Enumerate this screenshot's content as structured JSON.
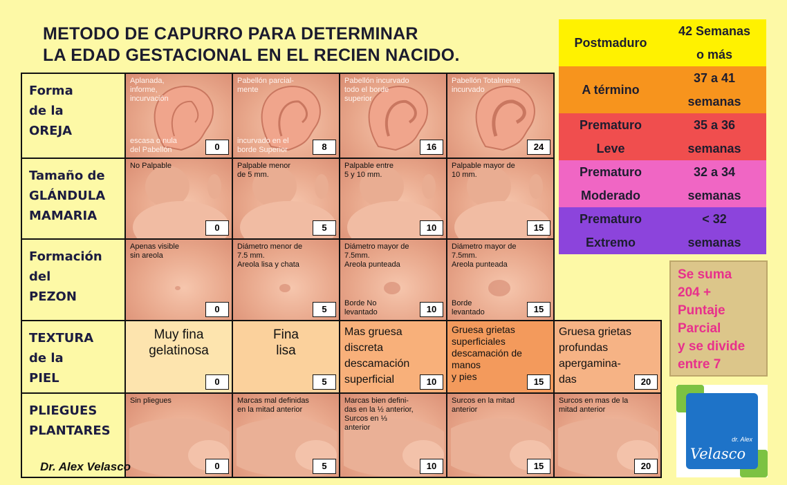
{
  "title": [
    "METODO DE CAPURRO PARA DETERMINAR",
    "LA EDAD GESTACIONAL EN EL RECIEN NACIDO."
  ],
  "rows": [
    {
      "label": [
        "Forma",
        "de la",
        "OREJA"
      ],
      "cells": [
        {
          "top": [
            "Aplanada,",
            "informe,",
            "incurvación"
          ],
          "bottom": [
            "escasa o nula",
            "del Pabellón"
          ],
          "score": 0
        },
        {
          "top": [
            "Pabellón parcial-",
            "mente"
          ],
          "bottom": [
            "incurvado en el",
            "borde Superior"
          ],
          "score": 8
        },
        {
          "top": [
            "Pabellón incurvado",
            "todo el borde",
            "superior"
          ],
          "score": 16
        },
        {
          "top": [
            "Pabellón Totalmente",
            "incurvado"
          ],
          "score": 24
        }
      ]
    },
    {
      "label": [
        "Tamaño de",
        "GLÁNDULA",
        "MAMARIA"
      ],
      "cells": [
        {
          "top": [
            "No Palpable"
          ],
          "score": 0
        },
        {
          "top": [
            "Palpable menor",
            "de 5 mm."
          ],
          "score": 5
        },
        {
          "top": [
            "Palpable entre",
            "5 y 10 mm."
          ],
          "score": 10
        },
        {
          "top": [
            "Palpable mayor de",
            "10 mm."
          ],
          "score": 15
        }
      ]
    },
    {
      "label": [
        "Formación",
        "del",
        "PEZON"
      ],
      "cells": [
        {
          "top": [
            "Apenas visible",
            "sin areola"
          ],
          "score": 0
        },
        {
          "top": [
            "Diámetro menor de",
            "7.5 mm.",
            "Areola lisa y chata"
          ],
          "score": 5
        },
        {
          "top": [
            "Diámetro mayor de",
            "7.5mm.",
            "Areola punteada"
          ],
          "bottom": [
            "Borde No",
            "levantado"
          ],
          "score": 10
        },
        {
          "top": [
            "Diámetro mayor de",
            "7.5mm.",
            "Areola punteada"
          ],
          "bottom": [
            "Borde",
            "levantado"
          ],
          "score": 15
        }
      ]
    },
    {
      "label": [
        "TEXTURA",
        "de la",
        "PIEL"
      ],
      "cells": [
        {
          "top": [
            "Muy fina",
            "gelatinosa"
          ],
          "score": 0
        },
        {
          "top": [
            "Fina",
            "lisa"
          ],
          "score": 5
        },
        {
          "top": [
            "Mas gruesa",
            "discreta",
            "descamación",
            "superficial"
          ],
          "score": 10
        },
        {
          "top": [
            "Gruesa grietas",
            "superficiales",
            "descamación de",
            "manos",
            "y pies"
          ],
          "score": 15
        },
        {
          "top": [
            "Gruesa grietas",
            "profundas",
            "apergamina-",
            "das"
          ],
          "score": 20
        }
      ]
    },
    {
      "label": [
        "PLIEGUES",
        "PLANTARES"
      ],
      "cells": [
        {
          "top": [
            "Sin pliegues"
          ],
          "score": 0
        },
        {
          "top": [
            "Marcas mal definidas",
            "en la mitad anterior"
          ],
          "score": 5
        },
        {
          "top": [
            "Marcas bien defini-",
            "das en la ½ anterior,",
            "Surcos en ⅓",
            "anterior"
          ],
          "score": 10
        },
        {
          "top": [
            "Surcos en la mitad",
            "anterior"
          ],
          "score": 15
        },
        {
          "top": [
            "Surcos en mas de la",
            "mitad anterior"
          ],
          "score": 20
        }
      ]
    }
  ],
  "classification": [
    {
      "name": [
        "Postmaduro"
      ],
      "range": [
        "42 Semanas",
        "o más"
      ]
    },
    {
      "name": [
        "A término"
      ],
      "range": [
        "37 a 41",
        "semanas"
      ]
    },
    {
      "name": [
        "Prematuro",
        "Leve"
      ],
      "range": [
        "35 a 36",
        "semanas"
      ]
    },
    {
      "name": [
        "Prematuro",
        "Moderado"
      ],
      "range": [
        "32 a 34",
        "semanas"
      ]
    },
    {
      "name": [
        "Prematuro",
        "Extremo"
      ],
      "range": [
        "< 32",
        "semanas"
      ]
    }
  ],
  "note": [
    "Se suma",
    "204 +",
    "Puntaje",
    "Parcial",
    "y se divide",
    "entre 7"
  ],
  "author": "Dr. Alex Velasco",
  "logo": {
    "small": "dr. Alex",
    "name": "Velasco"
  }
}
